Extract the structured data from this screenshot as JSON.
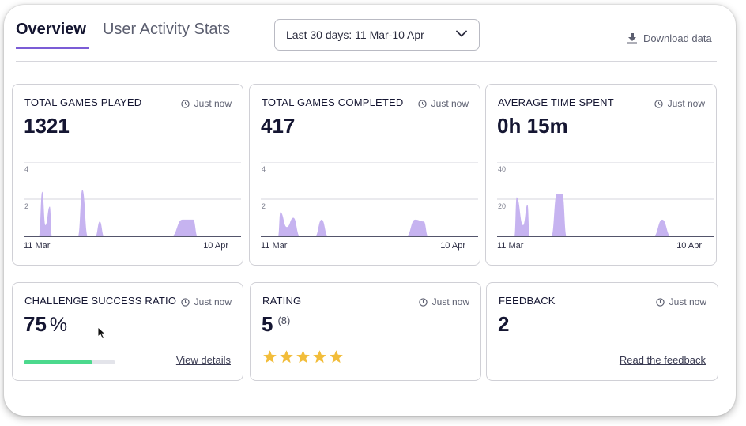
{
  "tabs": [
    {
      "label": "Overview",
      "active": true
    },
    {
      "label": "User Activity Stats",
      "active": false
    }
  ],
  "date_range": {
    "label": "Last 30 days: 11 Mar-10 Apr"
  },
  "download": {
    "label": "Download data",
    "icon": "download-icon"
  },
  "colors": {
    "accent": "#7b5cd6",
    "chart_fill": "#c6b3f0",
    "progress": "#4cd98d",
    "star": "#f2bd3a"
  },
  "cards": {
    "games_played": {
      "title": "TOTAL GAMES PLAYED",
      "updated": "Just now",
      "value": "1321",
      "x_start": "11 Mar",
      "x_end": "10 Apr"
    },
    "games_completed": {
      "title": "TOTAL GAMES COMPLETED",
      "updated": "Just now",
      "value": "417",
      "x_start": "11 Mar",
      "x_end": "10 Apr"
    },
    "avg_time": {
      "title": "AVERAGE TIME SPENT",
      "updated": "Just now",
      "value": "0h 15m",
      "x_start": "11 Mar",
      "x_end": "10 Apr"
    },
    "challenge": {
      "title": "CHALLENGE SUCCESS RATIO",
      "updated": "Just now",
      "value": "75",
      "unit": "%",
      "progress": 0.75,
      "link": "View details"
    },
    "rating": {
      "title": "RATING",
      "updated": "Just now",
      "value": "5",
      "count": "(8)",
      "stars": 5
    },
    "feedback": {
      "title": "FEEDBACK",
      "updated": "Just now",
      "value": "2",
      "link": "Read the feedback"
    }
  },
  "chart_data": [
    {
      "type": "area",
      "title": "TOTAL GAMES PLAYED",
      "x_range": [
        "11 Mar",
        "10 Apr"
      ],
      "y_ticks": [
        "2",
        "4"
      ],
      "ylim": [
        0,
        4
      ],
      "points": [
        [
          0.07,
          0
        ],
        [
          0.085,
          2.4
        ],
        [
          0.1,
          0.6
        ],
        [
          0.12,
          1.6
        ],
        [
          0.13,
          0
        ],
        [
          0.25,
          0
        ],
        [
          0.27,
          2.5
        ],
        [
          0.295,
          0
        ],
        [
          0.33,
          0
        ],
        [
          0.35,
          0.8
        ],
        [
          0.37,
          0
        ],
        [
          0.68,
          0
        ],
        [
          0.73,
          0.9
        ],
        [
          0.78,
          0.9
        ],
        [
          0.8,
          0
        ]
      ]
    },
    {
      "type": "area",
      "title": "TOTAL GAMES COMPLETED",
      "x_range": [
        "11 Mar",
        "10 Apr"
      ],
      "y_ticks": [
        "2",
        "4"
      ],
      "ylim": [
        0,
        4
      ],
      "points": [
        [
          0.08,
          0
        ],
        [
          0.09,
          1.3
        ],
        [
          0.12,
          0.5
        ],
        [
          0.15,
          1.0
        ],
        [
          0.18,
          0
        ],
        [
          0.25,
          0
        ],
        [
          0.28,
          0.9
        ],
        [
          0.31,
          0
        ],
        [
          0.67,
          0
        ],
        [
          0.71,
          0.9
        ],
        [
          0.75,
          0.8
        ],
        [
          0.77,
          0
        ]
      ]
    },
    {
      "type": "area",
      "title": "AVERAGE TIME SPENT",
      "x_range": [
        "11 Mar",
        "10 Apr"
      ],
      "y_ticks": [
        "20",
        "40"
      ],
      "ylim": [
        0,
        40
      ],
      "points": [
        [
          0.08,
          0
        ],
        [
          0.09,
          21
        ],
        [
          0.12,
          6
        ],
        [
          0.14,
          17
        ],
        [
          0.15,
          0
        ],
        [
          0.25,
          0
        ],
        [
          0.275,
          23
        ],
        [
          0.3,
          23
        ],
        [
          0.32,
          0
        ],
        [
          0.72,
          0
        ],
        [
          0.76,
          9
        ],
        [
          0.8,
          0
        ]
      ]
    }
  ]
}
